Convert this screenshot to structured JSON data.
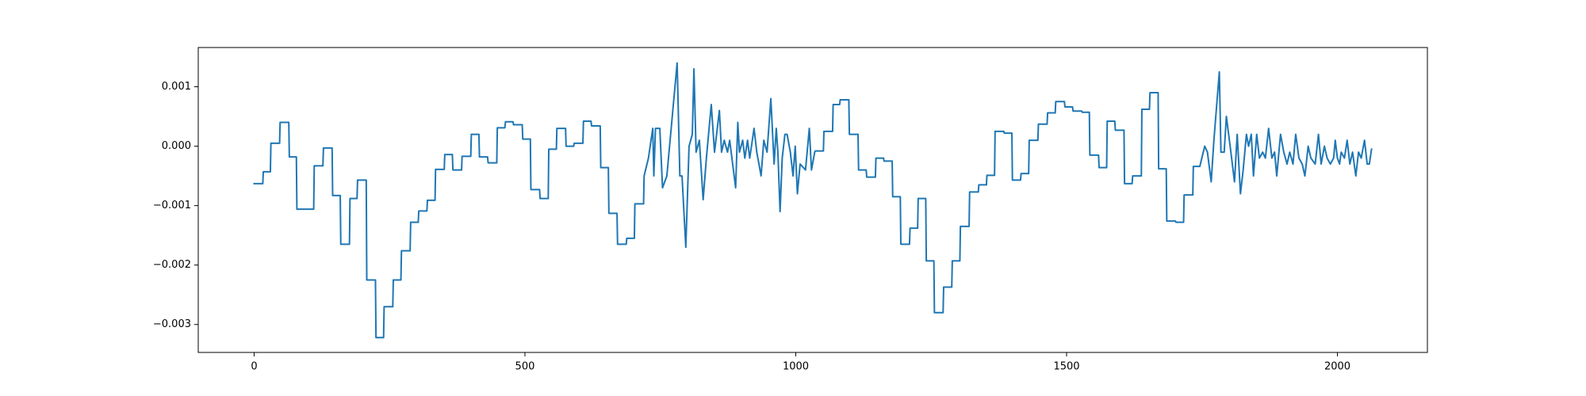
{
  "chart_data": {
    "type": "line",
    "x": [
      0,
      16,
      17,
      30,
      31,
      47,
      48,
      64,
      65,
      78,
      79,
      110,
      111,
      127,
      128,
      144,
      145,
      159,
      160,
      176,
      177,
      190,
      191,
      207,
      208,
      224,
      225,
      239,
      240,
      256,
      257,
      271,
      272,
      288,
      289,
      303,
      304,
      319,
      320,
      334,
      335,
      351,
      352,
      366,
      367,
      383,
      384,
      400,
      401,
      415,
      416,
      431,
      432,
      448,
      449,
      463,
      464,
      478,
      479,
      495,
      496,
      510,
      511,
      527,
      528,
      543,
      544,
      558,
      559,
      575,
      576,
      590,
      591,
      607,
      608,
      622,
      623,
      639,
      640,
      654,
      655,
      670,
      671,
      687,
      688,
      702,
      703,
      719,
      720,
      728,
      736,
      738,
      741,
      749,
      754,
      762,
      771,
      781,
      786,
      790,
      797,
      803,
      809,
      812,
      816,
      822,
      829,
      835,
      844,
      850,
      859,
      863,
      868,
      874,
      878,
      889,
      893,
      896,
      902,
      906,
      911,
      915,
      923,
      928,
      936,
      941,
      947,
      954,
      960,
      964,
      967,
      971,
      975,
      980,
      984,
      990,
      995,
      999,
      1003,
      1008,
      1018,
      1025,
      1029,
      1035,
      1036,
      1051,
      1052,
      1068,
      1069,
      1081,
      1082,
      1098,
      1099,
      1115,
      1116,
      1130,
      1131,
      1147,
      1148,
      1162,
      1163,
      1178,
      1179,
      1193,
      1194,
      1210,
      1211,
      1225,
      1226,
      1240,
      1241,
      1255,
      1256,
      1272,
      1273,
      1288,
      1289,
      1303,
      1304,
      1320,
      1321,
      1337,
      1338,
      1352,
      1353,
      1367,
      1368,
      1384,
      1385,
      1399,
      1400,
      1415,
      1416,
      1430,
      1431,
      1447,
      1448,
      1464,
      1465,
      1479,
      1480,
      1496,
      1497,
      1511,
      1512,
      1528,
      1529,
      1542,
      1543,
      1559,
      1560,
      1574,
      1575,
      1589,
      1590,
      1606,
      1607,
      1621,
      1622,
      1638,
      1639,
      1653,
      1654,
      1669,
      1670,
      1684,
      1685,
      1701,
      1702,
      1716,
      1717,
      1733,
      1734,
      1746,
      1755,
      1760,
      1767,
      1772,
      1782,
      1785,
      1791,
      1795,
      1802,
      1810,
      1815,
      1821,
      1826,
      1832,
      1836,
      1841,
      1845,
      1851,
      1856,
      1862,
      1867,
      1873,
      1879,
      1884,
      1888,
      1895,
      1901,
      1907,
      1912,
      1918,
      1923,
      1929,
      1935,
      1940,
      1946,
      1951,
      1959,
      1965,
      1970,
      1976,
      1981,
      1987,
      1993,
      1996,
      2000,
      2004,
      2007,
      2013,
      2018,
      2023,
      2028,
      2034,
      2039,
      2044,
      2050,
      2055,
      2059,
      2063
    ],
    "values": [
      -0.00063,
      -0.00063,
      -0.00043,
      -0.00043,
      5e-05,
      5e-05,
      0.0004,
      0.0004,
      -0.00018,
      -0.00018,
      -0.00106,
      -0.00106,
      -0.00033,
      -0.00033,
      -3e-05,
      -3e-05,
      -0.00083,
      -0.00083,
      -0.00165,
      -0.00165,
      -0.00088,
      -0.00088,
      -0.00057,
      -0.00057,
      -0.00225,
      -0.00225,
      -0.00322,
      -0.00322,
      -0.0027,
      -0.0027,
      -0.00225,
      -0.00225,
      -0.00176,
      -0.00176,
      -0.00128,
      -0.00128,
      -0.00109,
      -0.00109,
      -0.00091,
      -0.00091,
      -0.00039,
      -0.00039,
      -0.00014,
      -0.00014,
      -0.0004,
      -0.0004,
      -0.00017,
      -0.00017,
      0.0002,
      0.0002,
      -0.00018,
      -0.00018,
      -0.00028,
      -0.00028,
      0.00031,
      0.00031,
      0.00041,
      0.00041,
      0.00036,
      0.00036,
      0.00012,
      0.00012,
      -0.00073,
      -0.00073,
      -0.00088,
      -0.00088,
      -5e-05,
      -5e-05,
      0.0003,
      0.0003,
      0,
      0,
      5e-05,
      5e-05,
      0.00042,
      0.00042,
      0.00034,
      0.00034,
      -0.00036,
      -0.00036,
      -0.00113,
      -0.00113,
      -0.00165,
      -0.00165,
      -0.00155,
      -0.00155,
      -0.00097,
      -0.00097,
      -0.0005,
      -0.0002,
      0.0003,
      -0.0005,
      0.0003,
      0.0003,
      -0.0007,
      -0.0005,
      0.0004,
      0.0014,
      -0.0005,
      -0.0005,
      -0.0017,
      0,
      0.0002,
      0.0013,
      -0.0001,
      0.0001,
      -0.0009,
      -0.0002,
      0.0007,
      -0.0001,
      0.0006,
      -0.0001,
      0.0001,
      -0.0001,
      0.0001,
      -0.0007,
      0.0004,
      -0.0001,
      0.0001,
      -0.0002,
      0.0001,
      -0.0002,
      0.0003,
      -0.0001,
      -0.0005,
      0.0001,
      -0.0001,
      0.0008,
      -0.0003,
      0.0003,
      -0.0001,
      -0.0011,
      -0.0002,
      0.0002,
      0.0002,
      -0.0001,
      -0.0005,
      0,
      -0.0008,
      -0.0003,
      -0.0004,
      0.0003,
      -0.0004,
      -0.0001,
      -8e-05,
      -8e-05,
      0.00025,
      0.00025,
      0.0007,
      0.0007,
      0.00078,
      0.00078,
      0.0002,
      0.0002,
      -0.0004,
      -0.0004,
      -0.00052,
      -0.00052,
      -0.0002,
      -0.0002,
      -0.00025,
      -0.00025,
      -0.00085,
      -0.00085,
      -0.00165,
      -0.00165,
      -0.00138,
      -0.00138,
      -0.00088,
      -0.00088,
      -0.00193,
      -0.00193,
      -0.0028,
      -0.0028,
      -0.00237,
      -0.00237,
      -0.00193,
      -0.00193,
      -0.00135,
      -0.00135,
      -0.00077,
      -0.00077,
      -0.00065,
      -0.00065,
      -0.00049,
      -0.00049,
      0.00025,
      0.00025,
      0.00022,
      0.00022,
      -0.00057,
      -0.00057,
      -0.00046,
      -0.00046,
      0.0001,
      0.0001,
      0.00037,
      0.00037,
      0.00056,
      0.00056,
      0.00075,
      0.00075,
      0.00066,
      0.00066,
      0.00059,
      0.00059,
      0.00057,
      0.00057,
      -0.00015,
      -0.00015,
      -0.00036,
      -0.00036,
      0.00042,
      0.00042,
      0.00027,
      0.00027,
      -0.00063,
      -0.00063,
      -0.0005,
      -0.0005,
      0.00062,
      0.00062,
      0.0009,
      0.0009,
      -0.00038,
      -0.00038,
      -0.00126,
      -0.00126,
      -0.00128,
      -0.00128,
      -0.00082,
      -0.00082,
      -0.00034,
      -0.00034,
      0,
      -0.0001,
      -0.0006,
      0.0001,
      0.00125,
      -0.0001,
      -0.0001,
      0.0005,
      0,
      -0.0006,
      0.0002,
      -0.0008,
      -0.0004,
      0.0002,
      0,
      0.0002,
      -0.0005,
      0.0002,
      -0.0002,
      -0.0001,
      -0.0002,
      0.0003,
      -0.0002,
      -0.0001,
      -0.0005,
      0.0002,
      -0.0001,
      -0.0003,
      -0.0001,
      -0.0003,
      0.0002,
      -0.0002,
      -0.0003,
      -0.0005,
      0,
      -0.0002,
      -0.0003,
      0.0002,
      -0.0003,
      0,
      -0.0002,
      -0.0003,
      -0.0002,
      0.0001,
      -0.0002,
      -0.0003,
      -0.0001,
      -0.0002,
      0.0001,
      -0.0003,
      -0.0001,
      -0.0005,
      -0.0001,
      -0.0002,
      0.0001,
      -0.0003,
      -0.0003,
      -5e-05
    ],
    "color": "#1f77b4",
    "xlim": [
      -103.15,
      2166.15
    ],
    "ylim": [
      -0.00347,
      0.00166
    ],
    "xticks": [
      0,
      500,
      1000,
      1500,
      2000
    ],
    "yticks": [
      {
        "value": -0.003,
        "label": "−0.003"
      },
      {
        "value": -0.002,
        "label": "−0.002"
      },
      {
        "value": -0.001,
        "label": "−0.001"
      },
      {
        "value": 0,
        "label": "0.000"
      },
      {
        "value": 0.001,
        "label": "0.001"
      }
    ],
    "grid": false
  }
}
